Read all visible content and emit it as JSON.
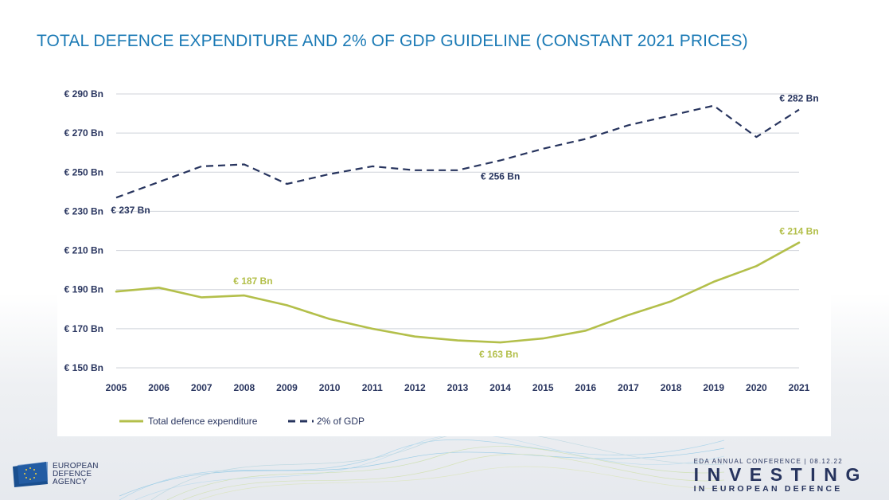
{
  "page": {
    "title": "TOTAL DEFENCE EXPENDITURE AND 2% OF GDP GUIDELINE (CONSTANT 2021 PRICES)"
  },
  "footer": {
    "logo_text": "EUROPEAN\nDEFENCE\nAGENCY",
    "conference_line": "EDA ANNUAL CONFERENCE | 08.12.22",
    "investing_text": "INVESTING",
    "european_defence_text": "IN EUROPEAN DEFENCE"
  },
  "colors": {
    "title": "#1b7ab5",
    "total_series": "#b3bf4a",
    "gdp_series": "#27345e",
    "axis_text": "#2a3660",
    "grid": "#cfd3da"
  },
  "chart_data": {
    "type": "line",
    "x": [
      2005,
      2006,
      2007,
      2008,
      2009,
      2010,
      2011,
      2012,
      2013,
      2014,
      2015,
      2016,
      2017,
      2018,
      2019,
      2020,
      2021
    ],
    "ylim": [
      150,
      290
    ],
    "yticks": [
      150,
      170,
      190,
      210,
      230,
      250,
      270,
      290
    ],
    "ytick_labels": [
      "€ 150 Bn",
      "€ 170 Bn",
      "€ 190 Bn",
      "€ 210 Bn",
      "€ 230 Bn",
      "€ 250 Bn",
      "€ 270 Bn",
      "€ 290 Bn"
    ],
    "grid": true,
    "legend_position": "bottom-left",
    "series": [
      {
        "name": "Total defence expenditure",
        "style": "solid",
        "color": "#b3bf4a",
        "values": [
          189,
          191,
          186,
          187,
          182,
          175,
          170,
          166,
          164,
          163,
          165,
          169,
          177,
          184,
          194,
          202,
          214
        ]
      },
      {
        "name": "2% of GDP",
        "style": "dashed",
        "color": "#27345e",
        "values": [
          237,
          245,
          253,
          254,
          244,
          249,
          253,
          251,
          251,
          256,
          262,
          267,
          274,
          279,
          284,
          268,
          282
        ]
      }
    ],
    "annotations": [
      {
        "text": "€ 237 Bn",
        "series": 1,
        "x": 2005,
        "y": 237
      },
      {
        "text": "€ 256 Bn",
        "series": 1,
        "x": 2014,
        "y": 256
      },
      {
        "text": "€ 282 Bn",
        "series": 1,
        "x": 2021,
        "y": 282
      },
      {
        "text": "€ 187 Bn",
        "series": 0,
        "x": 2008,
        "y": 187
      },
      {
        "text": "€ 163 Bn",
        "series": 0,
        "x": 2014,
        "y": 163
      },
      {
        "text": "€ 214 Bn",
        "series": 0,
        "x": 2021,
        "y": 214
      }
    ]
  }
}
